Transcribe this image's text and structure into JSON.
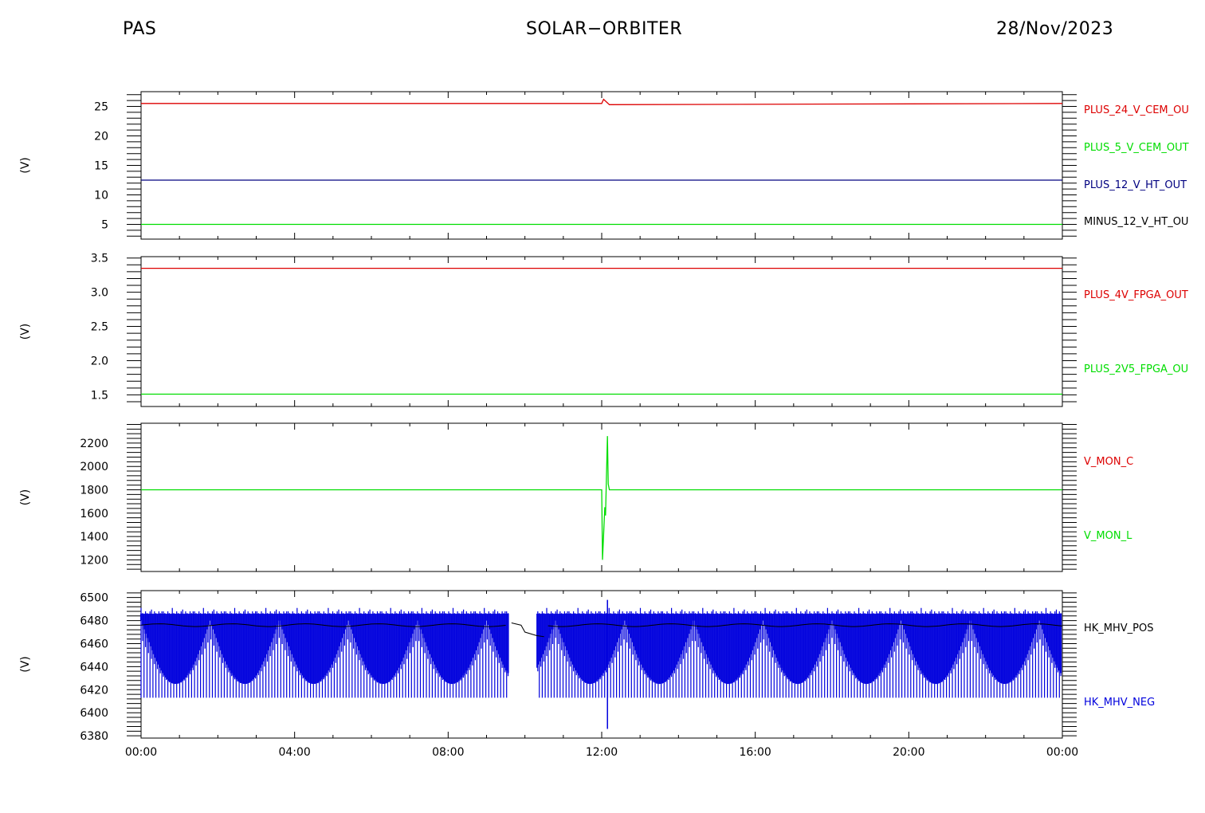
{
  "header": {
    "left": "PAS",
    "center": "SOLAR−ORBITER",
    "right": "28/Nov/2023"
  },
  "x_axis": {
    "tick_labels": [
      "00:00",
      "04:00",
      "08:00",
      "12:00",
      "16:00",
      "20:00",
      "00:00"
    ],
    "range_hours": [
      0,
      24
    ]
  },
  "chart_data": [
    {
      "type": "line",
      "ylabel": "(V)",
      "ylim": [
        2.5,
        27.5
      ],
      "yticks": [
        5,
        10,
        15,
        20,
        25
      ],
      "ytick_labels": [
        "5",
        "10",
        "15",
        "20",
        "25"
      ],
      "legend_placement": "right",
      "legend": [
        {
          "name": "PLUS_24_V_CEM_OU",
          "color": "#dd0000"
        },
        {
          "name": "PLUS_5_V_CEM_OUT",
          "color": "#00dd00"
        },
        {
          "name": "PLUS_12_V_HT_OUT",
          "color": "#000080"
        },
        {
          "name": "MINUS_12_V_HT_OU",
          "color": "#000000"
        }
      ],
      "series": [
        {
          "name": "PLUS_24_V_CEM_OU",
          "color": "#dd0000",
          "x": [
            0,
            12.0,
            12.05,
            12.2,
            24
          ],
          "y": [
            25.5,
            25.5,
            26.2,
            25.3,
            25.5
          ]
        },
        {
          "name": "PLUS_5_V_CEM_OUT",
          "color": "#00dd00",
          "x": [
            0,
            24
          ],
          "y": [
            5.0,
            5.0
          ]
        },
        {
          "name": "PLUS_12_V_HT_OUT",
          "color": "#000080",
          "x": [
            0,
            24
          ],
          "y": [
            12.5,
            12.5
          ]
        }
      ]
    },
    {
      "type": "line",
      "ylabel": "(V)",
      "ylim": [
        1.33,
        3.52
      ],
      "yticks": [
        1.5,
        2.0,
        2.5,
        3.0,
        3.5
      ],
      "ytick_labels": [
        "1.5",
        "2.0",
        "2.5",
        "3.0",
        "3.5"
      ],
      "legend_placement": "right",
      "legend": [
        {
          "name": "PLUS_4V_FPGA_OUT",
          "color": "#dd0000"
        },
        {
          "name": "PLUS_2V5_FPGA_OU",
          "color": "#00dd00"
        }
      ],
      "series": [
        {
          "name": "PLUS_4V_FPGA_OUT",
          "color": "#dd0000",
          "x": [
            0,
            24
          ],
          "y": [
            3.35,
            3.35
          ]
        },
        {
          "name": "PLUS_2V5_FPGA_OU",
          "color": "#00dd00",
          "x": [
            0,
            24
          ],
          "y": [
            1.51,
            1.51
          ]
        }
      ]
    },
    {
      "type": "line",
      "ylabel": "(V)",
      "ylim": [
        1100,
        2370
      ],
      "yticks": [
        1200,
        1400,
        1600,
        1800,
        2000,
        2200
      ],
      "ytick_labels": [
        "1200",
        "1400",
        "1600",
        "1800",
        "2000",
        "2200"
      ],
      "legend_placement": "right",
      "legend": [
        {
          "name": "V_MON_C",
          "color": "#dd0000"
        },
        {
          "name": "V_MON_L",
          "color": "#00dd00"
        }
      ],
      "series": [
        {
          "name": "V_MON_L",
          "color": "#00dd00",
          "x": [
            0,
            12.0,
            12.02,
            12.08,
            12.1,
            12.15,
            12.17,
            12.2,
            24
          ],
          "y": [
            1800,
            1800,
            1200,
            1650,
            1580,
            2260,
            1850,
            1800,
            1800
          ]
        }
      ]
    },
    {
      "type": "line",
      "ylabel": "(V)",
      "ylim": [
        6378,
        6506
      ],
      "yticks": [
        6380,
        6400,
        6420,
        6440,
        6460,
        6480,
        6500
      ],
      "ytick_labels": [
        "6380",
        "6400",
        "6420",
        "6440",
        "6460",
        "6480",
        "6500"
      ],
      "legend_placement": "right",
      "legend": [
        {
          "name": "HK_MHV_POS",
          "color": "#000000"
        },
        {
          "name": "HK_MHV_NEG",
          "color": "#0000dd"
        }
      ],
      "series": [
        {
          "name": "HK_MHV_POS",
          "color": "#000000",
          "baseline": 6476,
          "gap_hours": [
            9.6,
            10.5
          ]
        },
        {
          "name": "HK_MHV_NEG",
          "color": "#0000dd",
          "low": 6413,
          "high": 6488,
          "gap_hours": [
            9.6,
            10.3
          ],
          "spike_hour": 12.15,
          "spike_min": 6386,
          "spike_max": 6498
        }
      ]
    }
  ]
}
